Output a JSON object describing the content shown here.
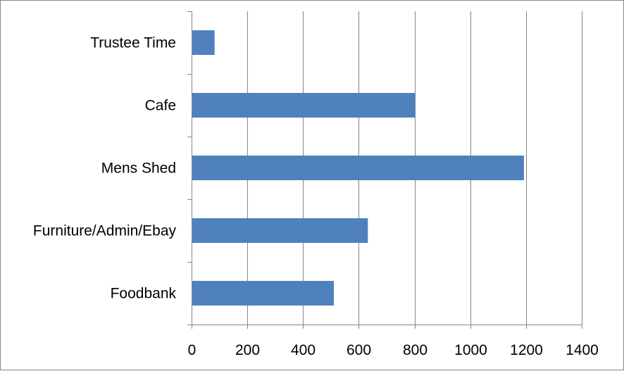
{
  "chart_data": {
    "type": "bar",
    "orientation": "horizontal",
    "categories": [
      "Foodbank",
      "Furniture/Admin/Ebay",
      "Mens Shed",
      "Cafe",
      "Trustee Time"
    ],
    "values": [
      508,
      630,
      1190,
      800,
      80
    ],
    "title": "",
    "xlabel": "",
    "ylabel": "",
    "xlim": [
      0,
      1400
    ],
    "x_ticks": [
      0,
      200,
      400,
      600,
      800,
      1000,
      1200,
      1400
    ],
    "grid": true,
    "legend": "none",
    "bar_color": "#4f81bd",
    "grid_color": "#868686"
  }
}
